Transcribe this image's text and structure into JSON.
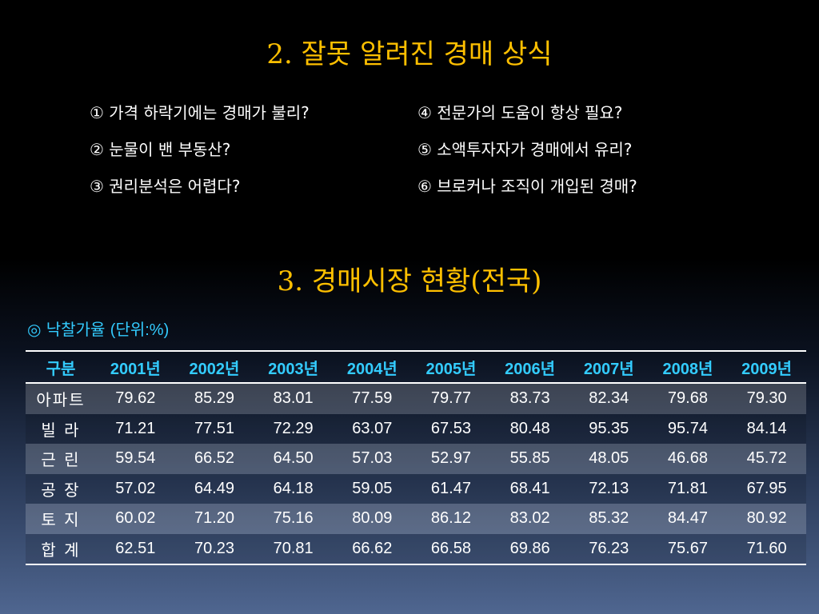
{
  "section2": {
    "title": "2. 잘못 알려진 경매 상식",
    "items": [
      "① 가격 하락기에는 경매가 불리?",
      "④ 전문가의 도움이 항상 필요?",
      "② 눈물이 밴 부동산?",
      "⑤ 소액투자자가 경매에서 유리?",
      "③ 권리분석은 어렵다?",
      "⑥ 브로커나 조직이 개입된 경매?"
    ]
  },
  "section3": {
    "title": "3. 경매시장 현황(전국)",
    "subtitle_symbol": "◎ 낙찰가율",
    "subtitle_unit": "(단위:%)"
  },
  "colors": {
    "title": "#ffc000",
    "accent": "#33ccff",
    "text": "#ffffff"
  },
  "chart_data": {
    "type": "table",
    "columns": [
      "구분",
      "2001년",
      "2002년",
      "2003년",
      "2004년",
      "2005년",
      "2006년",
      "2007년",
      "2008년",
      "2009년"
    ],
    "rows": [
      {
        "label": "아파트",
        "values": [
          "79.62",
          "85.29",
          "83.01",
          "77.59",
          "79.77",
          "83.73",
          "82.34",
          "79.68",
          "79.30"
        ]
      },
      {
        "label": "빌 라",
        "values": [
          "71.21",
          "77.51",
          "72.29",
          "63.07",
          "67.53",
          "80.48",
          "95.35",
          "95.74",
          "84.14"
        ]
      },
      {
        "label": "근 린",
        "values": [
          "59.54",
          "66.52",
          "64.50",
          "57.03",
          "52.97",
          "55.85",
          "48.05",
          "46.68",
          "45.72"
        ]
      },
      {
        "label": "공 장",
        "values": [
          "57.02",
          "64.49",
          "64.18",
          "59.05",
          "61.47",
          "68.41",
          "72.13",
          "71.81",
          "67.95"
        ]
      },
      {
        "label": "토 지",
        "values": [
          "60.02",
          "71.20",
          "75.16",
          "80.09",
          "86.12",
          "83.02",
          "85.32",
          "84.47",
          "80.92"
        ]
      },
      {
        "label": "합 계",
        "values": [
          "62.51",
          "70.23",
          "70.81",
          "66.62",
          "66.58",
          "69.86",
          "76.23",
          "75.67",
          "71.60"
        ]
      }
    ]
  }
}
